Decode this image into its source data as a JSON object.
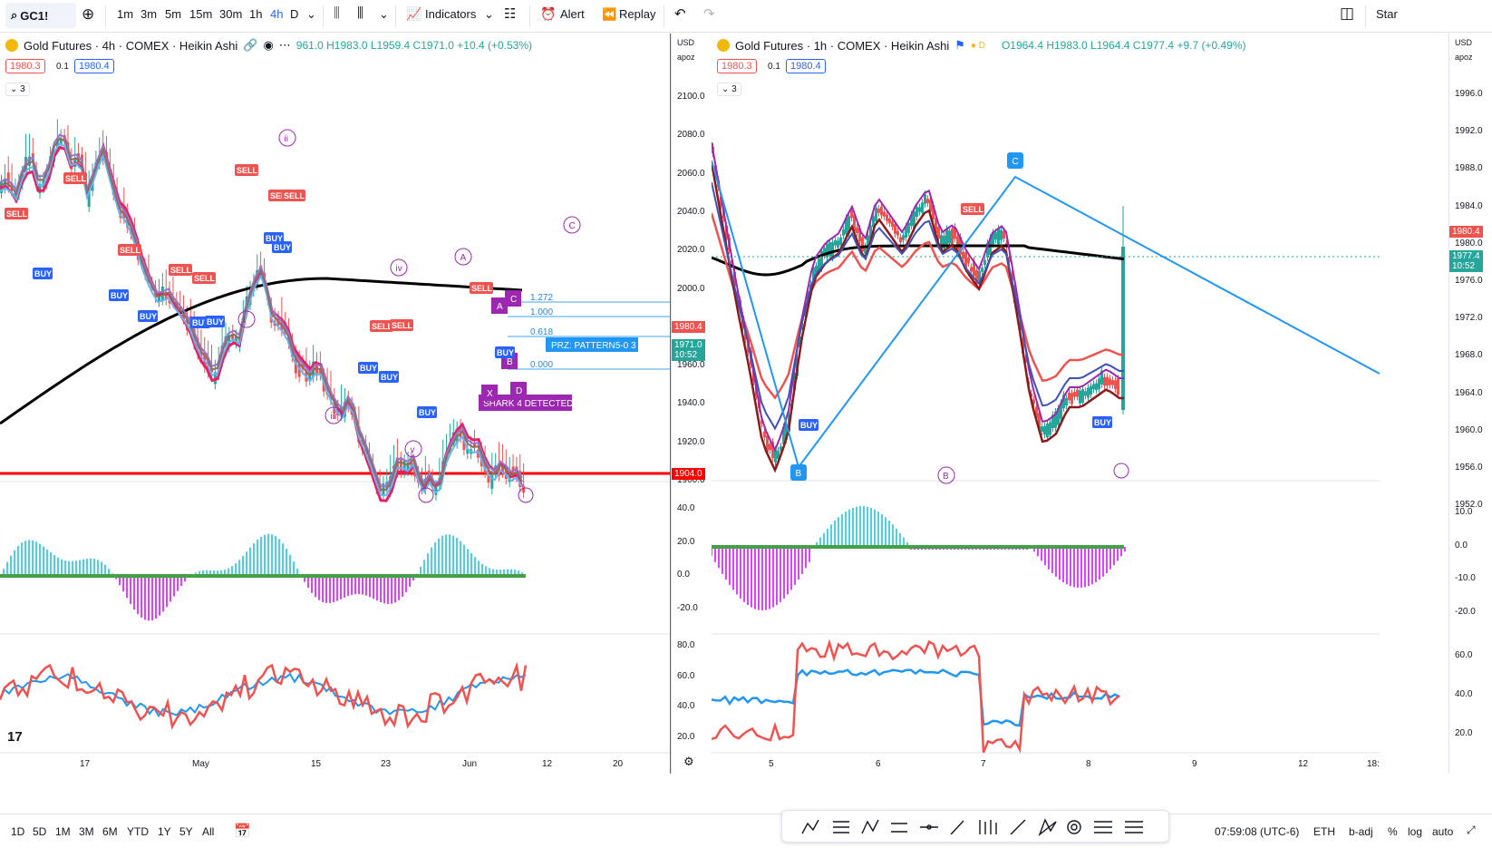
{
  "toolbar": {
    "symbol": "GC1!",
    "intervals": [
      "1m",
      "3m",
      "5m",
      "15m",
      "30m",
      "1h",
      "4h",
      "D"
    ],
    "active_interval": "4h",
    "indicators_label": "Indicators",
    "alert_label": "Alert",
    "replay_label": "Replay",
    "star_label": "Star"
  },
  "left_chart": {
    "title": "Gold Futures · 4h · COMEX · Heikin Ashi",
    "ohlc": "961.0 H1983.0 L1959.4 C1971.0 +10.4 (+0.53%)",
    "price_left": "1980.3",
    "step": "0.1",
    "price_right": "1980.4",
    "collapse": "3",
    "currency": "USD",
    "scale_mode": "apoz",
    "price_ticks": [
      "2100.0",
      "2080.0",
      "2060.0",
      "2040.0",
      "2020.0",
      "2000.0",
      "1980.0",
      "1960.0",
      "1940.0",
      "1920.0",
      "1900.0"
    ],
    "price_tag_current": "1980.4",
    "price_tag_close": "1971.0",
    "price_tag_timer": "10:52",
    "price_tag_support": "1904.0",
    "fib_labels": [
      "1.272",
      "1.000",
      "0.618",
      "0.000"
    ],
    "prz_label": "PRZ: PATTERN5-0 3",
    "pattern_label": "SHARK 4 DETECTED",
    "wave_labels": [
      "ii",
      "i",
      "iii",
      "iv",
      "v",
      "A",
      "C"
    ],
    "harmonic_points": [
      "A",
      "C",
      "B",
      "X",
      "D"
    ],
    "osc1_ticks": [
      "40.0",
      "20.0",
      "0.0",
      "-20.0"
    ],
    "osc2_ticks": [
      "80.0",
      "60.0",
      "40.0",
      "20.0"
    ],
    "x_labels": [
      "17",
      "May",
      "15",
      "23",
      "Jun",
      "12",
      "20"
    ],
    "signals": {
      "sell": "SELL",
      "buy": "BUY"
    }
  },
  "right_chart": {
    "title": "Gold Futures · 1h · COMEX · Heikin Ashi",
    "ohlc": "O1964.4 H1983.0 L1964.4 C1977.4 +9.7 (+0.49%)",
    "price_left": "1980.3",
    "step": "0.1",
    "price_right": "1980.4",
    "collapse": "3",
    "currency": "USD",
    "scale_mode": "apoz",
    "price_ticks": [
      "1996.0",
      "1992.0",
      "1988.0",
      "1984.0",
      "1980.0",
      "1976.0",
      "1972.0",
      "1968.0",
      "1964.0",
      "1960.0",
      "1956.0",
      "1952.0"
    ],
    "price_tag_current": "1980.4",
    "price_tag_close": "1977.4",
    "price_tag_timer": "10:52",
    "points": [
      "C",
      "B"
    ],
    "wave_label": "B",
    "osc1_ticks": [
      "10.0",
      "0.0",
      "-10.0",
      "-20.0"
    ],
    "osc2_ticks": [
      "60.0",
      "40.0",
      "20.0"
    ],
    "x_labels": [
      "5",
      "6",
      "7",
      "8",
      "9",
      "12",
      "18:"
    ],
    "signals": {
      "sell": "SELL",
      "buy": "BUY"
    }
  },
  "bottom": {
    "ranges": [
      "1D",
      "5D",
      "1M",
      "3M",
      "6M",
      "YTD",
      "1Y",
      "5Y",
      "All"
    ],
    "time": "07:59:08 (UTC-6)",
    "session": "ETH",
    "badj": "b-adj",
    "pct": "%",
    "log": "log",
    "auto": "auto"
  },
  "colors": {
    "up": "#26a69a",
    "down": "#ef5350",
    "accent": "#2962ff",
    "purple": "#9c27b0"
  }
}
